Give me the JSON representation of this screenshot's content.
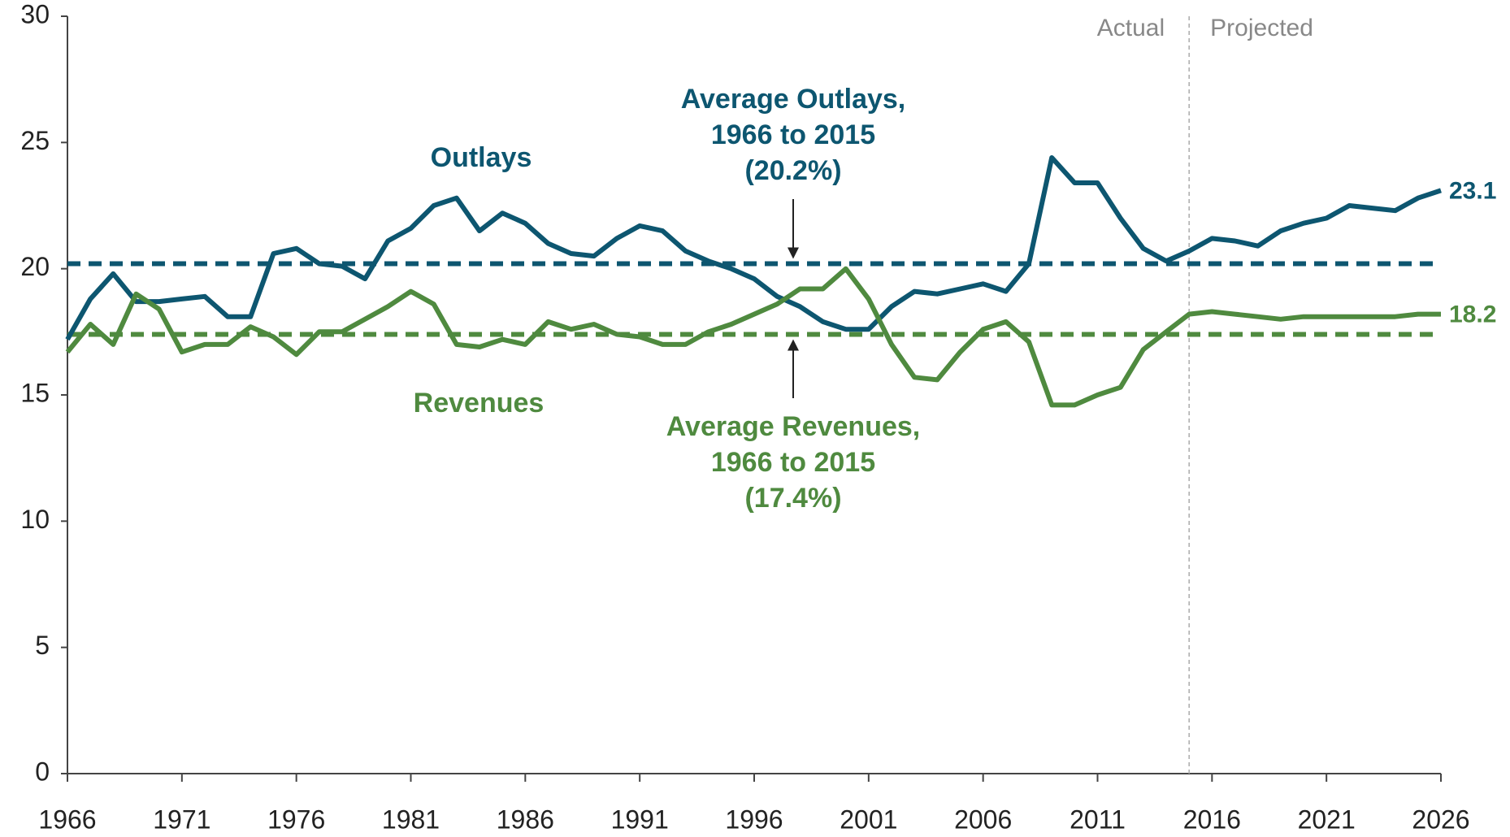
{
  "chart_data": {
    "type": "line",
    "x": [
      1966,
      1967,
      1968,
      1969,
      1970,
      1971,
      1972,
      1973,
      1974,
      1975,
      1976,
      1977,
      1978,
      1979,
      1980,
      1981,
      1982,
      1983,
      1984,
      1985,
      1986,
      1987,
      1988,
      1989,
      1990,
      1991,
      1992,
      1993,
      1994,
      1995,
      1996,
      1997,
      1998,
      1999,
      2000,
      2001,
      2002,
      2003,
      2004,
      2005,
      2006,
      2007,
      2008,
      2009,
      2010,
      2011,
      2012,
      2013,
      2014,
      2015,
      2016,
      2017,
      2018,
      2019,
      2020,
      2021,
      2022,
      2023,
      2024,
      2025,
      2026
    ],
    "series": [
      {
        "name": "Outlays",
        "color": "#0d5670",
        "values": [
          17.2,
          18.8,
          19.8,
          18.7,
          18.7,
          18.8,
          18.9,
          18.1,
          18.1,
          20.6,
          20.8,
          20.2,
          20.1,
          19.6,
          21.1,
          21.6,
          22.5,
          22.8,
          21.5,
          22.2,
          21.8,
          21.0,
          20.6,
          20.5,
          21.2,
          21.7,
          21.5,
          20.7,
          20.3,
          20.0,
          19.6,
          18.9,
          18.5,
          17.9,
          17.6,
          17.6,
          18.5,
          19.1,
          19.0,
          19.2,
          19.4,
          19.1,
          20.2,
          24.4,
          23.4,
          23.4,
          22.0,
          20.8,
          20.3,
          20.7,
          21.2,
          21.1,
          20.9,
          21.5,
          21.8,
          22.0,
          22.5,
          22.4,
          22.3,
          22.8,
          23.1
        ]
      },
      {
        "name": "Revenues",
        "color": "#4f8a3f",
        "values": [
          16.7,
          17.8,
          17.0,
          19.0,
          18.4,
          16.7,
          17.0,
          17.0,
          17.7,
          17.3,
          16.6,
          17.5,
          17.5,
          18.0,
          18.5,
          19.1,
          18.6,
          17.0,
          16.9,
          17.2,
          17.0,
          17.9,
          17.6,
          17.8,
          17.4,
          17.3,
          17.0,
          17.0,
          17.5,
          17.8,
          18.2,
          18.6,
          19.2,
          19.2,
          20.0,
          18.8,
          17.0,
          15.7,
          15.6,
          16.7,
          17.6,
          17.9,
          17.1,
          14.6,
          14.6,
          15.0,
          15.3,
          16.8,
          17.5,
          18.2,
          18.3,
          18.2,
          18.1,
          18.0,
          18.1,
          18.1,
          18.1,
          18.1,
          18.1,
          18.2,
          18.2
        ]
      }
    ],
    "reference_lines": [
      {
        "value": 20.2,
        "color": "#0d5670",
        "label": [
          "Average Outlays,",
          "1966 to 2015",
          "(20.2%)"
        ]
      },
      {
        "value": 17.4,
        "color": "#4f8a3f",
        "label": [
          "Average Revenues,",
          "1966 to 2015",
          "(17.4%)"
        ]
      }
    ],
    "divider": {
      "x": 2015,
      "labels": [
        "Actual",
        "Projected"
      ]
    },
    "xlim": [
      1966,
      2026
    ],
    "xticks": [
      1966,
      1971,
      1976,
      1981,
      1986,
      1991,
      1996,
      2001,
      2006,
      2011,
      2016,
      2021,
      2026
    ],
    "ylim": [
      0,
      30
    ],
    "yticks": [
      0,
      5,
      10,
      15,
      20,
      25,
      30
    ]
  }
}
